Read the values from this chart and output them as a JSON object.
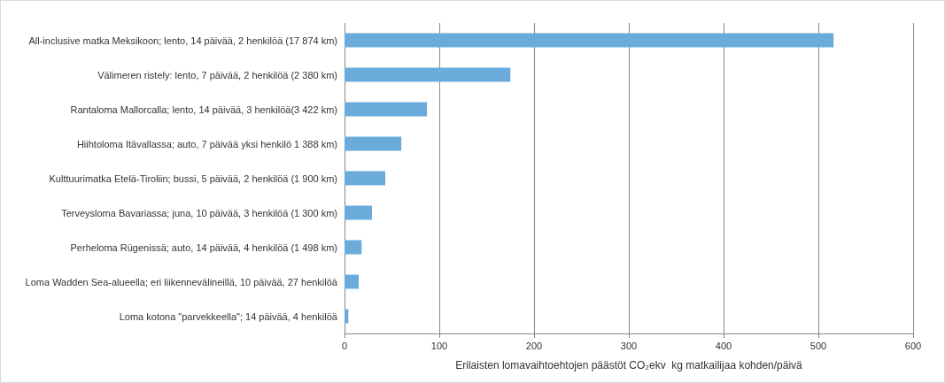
{
  "chart_data": {
    "type": "bar",
    "orientation": "horizontal",
    "categories": [
      "All-inclusive matka Meksikoon; lento, 14 päivää, 2 henkilöä (17 874 km)",
      "Välimeren ristely: lento, 7 päivää, 2 henkilöä (2 380 km)",
      "Rantaloma Mallorcalla; lento, 14 päivää, 3 henkilöä(3 422 km)",
      "Hiihtoloma Itävallassa; auto, 7 päivää yksi henkilö 1 388 km)",
      "Kulttuurimatka Etelä-Tiroliin; bussi, 5 päivää, 2 henkilöä (1 900 km)",
      "Terveysloma Bavariassa; juna, 10 päivää, 3 henkilöä (1 300 km)",
      "Perheloma Rügenissä; auto, 14 päivää, 4 henkilöä (1 498 km)",
      "Loma Wadden Sea-alueella; eri liikennevälineillä, 10 päivää, 27 henkilöä",
      "Loma kotona \"parvekkeella\"; 14 päivää, 4 henkilöä"
    ],
    "values": [
      516,
      175,
      87,
      60,
      43,
      29,
      18,
      15,
      4
    ],
    "color": "#6aabdb",
    "xlabel": "Erilaisten lomavaihtoehtojen päästöt CO₂ekv  kg matkailijaa kohden/päivä",
    "xlim": [
      0,
      600
    ],
    "xticks": [
      0,
      100,
      200,
      300,
      400,
      500,
      600
    ],
    "grid": "x"
  }
}
